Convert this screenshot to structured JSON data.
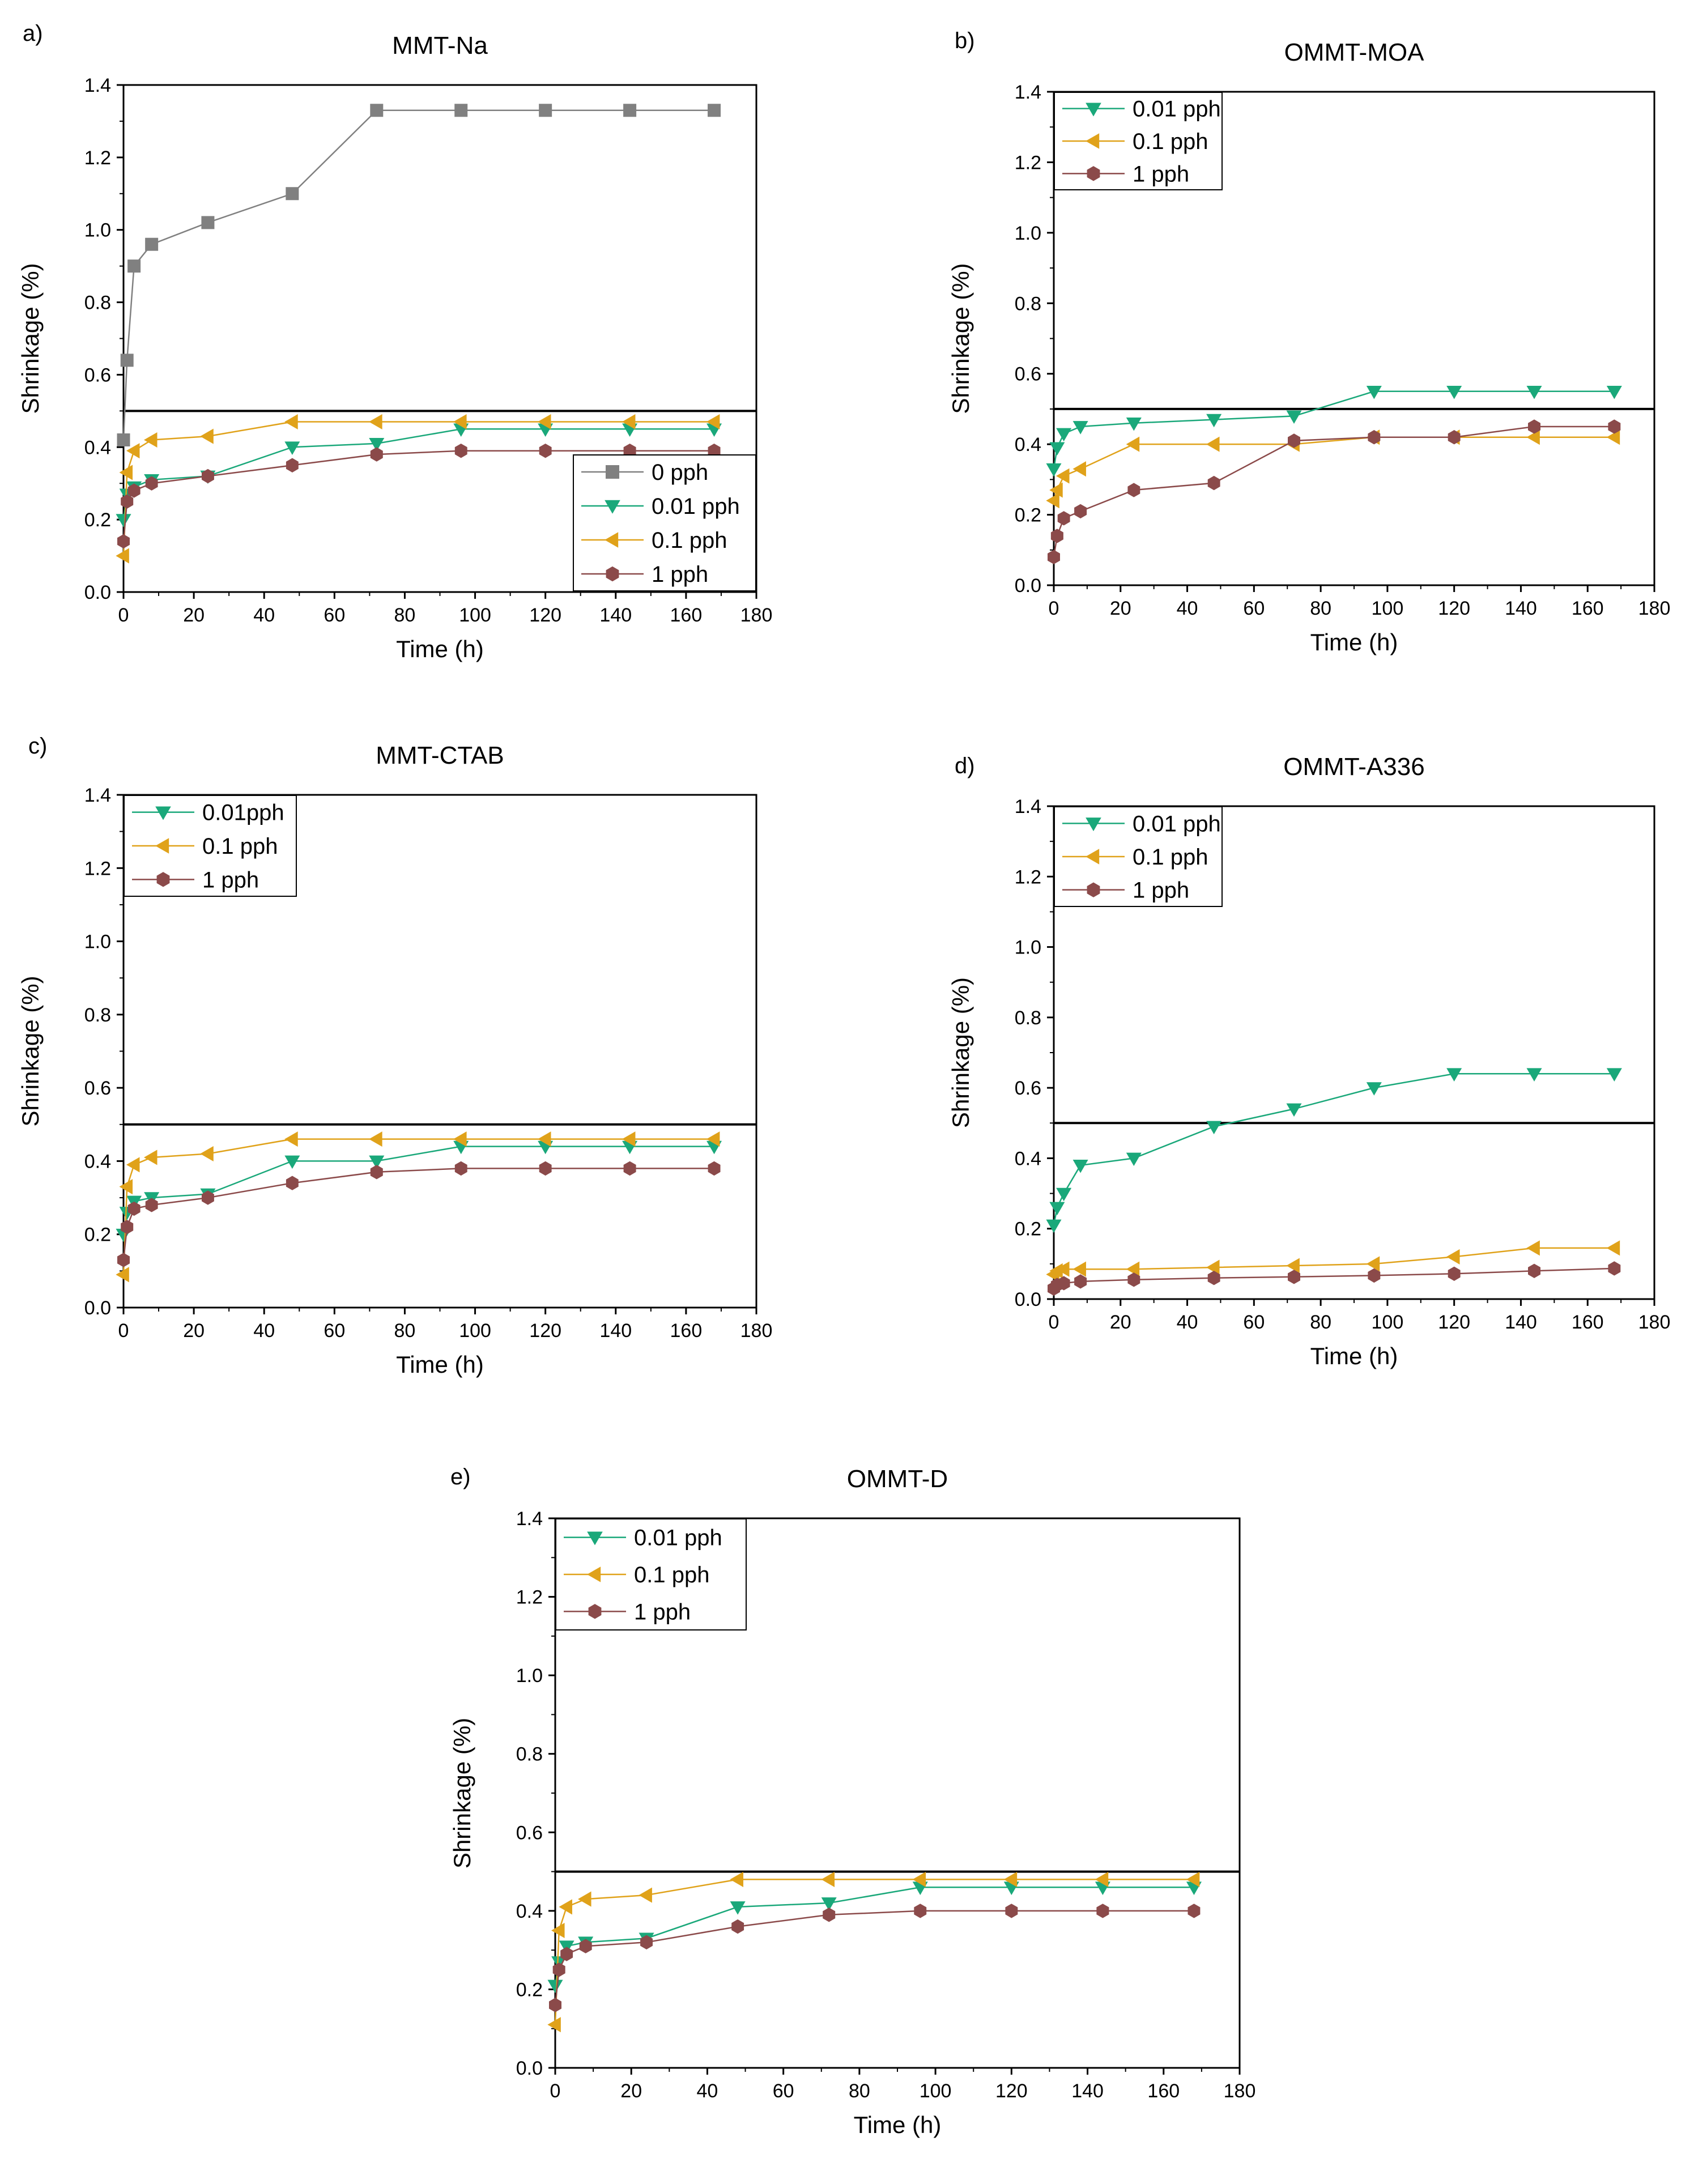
{
  "chart_data": [
    {
      "id": "a",
      "panel_label": "a)",
      "type": "line",
      "title": "MMT-Na",
      "xlabel": "Time (h)",
      "ylabel": "Shrinkage (%)",
      "xlim": [
        0,
        180
      ],
      "ylim": [
        0,
        1.4
      ],
      "xticks": [
        "0",
        "20",
        "40",
        "60",
        "80",
        "100",
        "120",
        "140",
        "160",
        "180"
      ],
      "yticks": [
        "0.0",
        "0.2",
        "0.4",
        "0.6",
        "0.8",
        "1.0",
        "1.2",
        "1.4"
      ],
      "reference_line_y": 0.5,
      "legend_position": "lower-right",
      "x": [
        0,
        1,
        3,
        8,
        24,
        48,
        72,
        96,
        120,
        144,
        168
      ],
      "series": [
        {
          "name": "0 pph",
          "marker": "square",
          "color": "#808080",
          "values": [
            0.42,
            0.64,
            0.9,
            0.96,
            1.02,
            1.1,
            1.33,
            1.33,
            1.33,
            1.33,
            1.33
          ]
        },
        {
          "name": "0.01 pph",
          "marker": "triangle-down",
          "color": "#1aa87a",
          "values": [
            0.2,
            0.27,
            0.29,
            0.31,
            0.32,
            0.4,
            0.41,
            0.45,
            0.45,
            0.45,
            0.45
          ]
        },
        {
          "name": "0.1 pph",
          "marker": "triangle-left",
          "color": "#e0a21a",
          "values": [
            0.1,
            0.33,
            0.39,
            0.42,
            0.43,
            0.47,
            0.47,
            0.47,
            0.47,
            0.47,
            0.47
          ]
        },
        {
          "name": "1 pph",
          "marker": "hexagon",
          "color": "#8b4a4a",
          "values": [
            0.14,
            0.25,
            0.28,
            0.3,
            0.32,
            0.35,
            0.38,
            0.39,
            0.39,
            0.39,
            0.39
          ]
        }
      ]
    },
    {
      "id": "b",
      "panel_label": "b)",
      "type": "line",
      "title": "OMMT-MOA",
      "xlabel": "Time (h)",
      "ylabel": "Shrinkage (%)",
      "xlim": [
        0,
        180
      ],
      "ylim": [
        0,
        1.4
      ],
      "xticks": [
        "0",
        "20",
        "40",
        "60",
        "80",
        "100",
        "120",
        "140",
        "160",
        "180"
      ],
      "yticks": [
        "0.0",
        "0.2",
        "0.4",
        "0.6",
        "0.8",
        "1.0",
        "1.2",
        "1.4"
      ],
      "reference_line_y": 0.5,
      "legend_position": "upper-left",
      "x": [
        0,
        1,
        3,
        8,
        24,
        48,
        72,
        96,
        120,
        144,
        168
      ],
      "series": [
        {
          "name": "0.01 pph",
          "marker": "triangle-down",
          "color": "#1aa87a",
          "values": [
            0.33,
            0.39,
            0.43,
            0.45,
            0.46,
            0.47,
            0.48,
            0.55,
            0.55,
            0.55,
            0.55
          ]
        },
        {
          "name": "0.1 pph",
          "marker": "triangle-left",
          "color": "#e0a21a",
          "values": [
            0.24,
            0.27,
            0.31,
            0.33,
            0.4,
            0.4,
            0.4,
            0.42,
            0.42,
            0.42,
            0.42
          ]
        },
        {
          "name": "1 pph",
          "marker": "hexagon",
          "color": "#8b4a4a",
          "values": [
            0.08,
            0.14,
            0.19,
            0.21,
            0.27,
            0.29,
            0.41,
            0.42,
            0.42,
            0.45,
            0.45
          ]
        }
      ]
    },
    {
      "id": "c",
      "panel_label": "c)",
      "type": "line",
      "title": "MMT-CTAB",
      "xlabel": "Time (h)",
      "ylabel": "Shrinkage (%)",
      "xlim": [
        0,
        180
      ],
      "ylim": [
        0,
        1.4
      ],
      "xticks": [
        "0",
        "20",
        "40",
        "60",
        "80",
        "100",
        "120",
        "140",
        "160",
        "180"
      ],
      "yticks": [
        "0.0",
        "0.2",
        "0.4",
        "0.6",
        "0.8",
        "1.0",
        "1.2",
        "1.4"
      ],
      "reference_line_y": 0.5,
      "legend_position": "upper-left",
      "x": [
        0,
        1,
        3,
        8,
        24,
        48,
        72,
        96,
        120,
        144,
        168
      ],
      "series": [
        {
          "name": "0.01pph",
          "marker": "triangle-down",
          "color": "#1aa87a",
          "values": [
            0.2,
            0.26,
            0.29,
            0.3,
            0.31,
            0.4,
            0.4,
            0.44,
            0.44,
            0.44,
            0.44
          ]
        },
        {
          "name": "0.1 pph",
          "marker": "triangle-left",
          "color": "#e0a21a",
          "values": [
            0.09,
            0.33,
            0.39,
            0.41,
            0.42,
            0.46,
            0.46,
            0.46,
            0.46,
            0.46,
            0.46
          ]
        },
        {
          "name": "1 pph",
          "marker": "hexagon",
          "color": "#8b4a4a",
          "values": [
            0.13,
            0.22,
            0.27,
            0.28,
            0.3,
            0.34,
            0.37,
            0.38,
            0.38,
            0.38,
            0.38
          ]
        }
      ]
    },
    {
      "id": "d",
      "panel_label": "d)",
      "type": "line",
      "title": "OMMT-A336",
      "xlabel": "Time (h)",
      "ylabel": "Shrinkage (%)",
      "xlim": [
        0,
        180
      ],
      "ylim": [
        0,
        1.4
      ],
      "xticks": [
        "0",
        "20",
        "40",
        "60",
        "80",
        "100",
        "120",
        "140",
        "160",
        "180"
      ],
      "yticks": [
        "0.0",
        "0.2",
        "0.4",
        "0.6",
        "0.8",
        "1.0",
        "1.2",
        "1.4"
      ],
      "reference_line_y": 0.5,
      "legend_position": "upper-left",
      "x": [
        0,
        1,
        3,
        8,
        24,
        48,
        72,
        96,
        120,
        144,
        168
      ],
      "series": [
        {
          "name": "0.01 pph",
          "marker": "triangle-down",
          "color": "#1aa87a",
          "values": [
            0.21,
            0.26,
            0.3,
            0.38,
            0.4,
            0.49,
            0.54,
            0.6,
            0.64,
            0.64,
            0.64
          ]
        },
        {
          "name": "0.1 pph",
          "marker": "triangle-left",
          "color": "#e0a21a",
          "values": [
            0.07,
            0.08,
            0.085,
            0.085,
            0.085,
            0.09,
            0.095,
            0.1,
            0.12,
            0.145,
            0.145
          ]
        },
        {
          "name": "1 pph",
          "marker": "hexagon",
          "color": "#8b4a4a",
          "values": [
            0.03,
            0.04,
            0.045,
            0.05,
            0.055,
            0.06,
            0.063,
            0.067,
            0.072,
            0.08,
            0.087
          ]
        }
      ]
    },
    {
      "id": "e",
      "panel_label": "e)",
      "type": "line",
      "title": "OMMT-D",
      "xlabel": "Time (h)",
      "ylabel": "Shrinkage (%)",
      "xlim": [
        0,
        180
      ],
      "ylim": [
        0,
        1.4
      ],
      "xticks": [
        "0",
        "20",
        "40",
        "60",
        "80",
        "100",
        "120",
        "140",
        "160",
        "180"
      ],
      "yticks": [
        "0.0",
        "0.2",
        "0.4",
        "0.6",
        "0.8",
        "1.0",
        "1.2",
        "1.4"
      ],
      "reference_line_y": 0.5,
      "legend_position": "upper-left",
      "x": [
        0,
        1,
        3,
        8,
        24,
        48,
        72,
        96,
        120,
        144,
        168
      ],
      "series": [
        {
          "name": "0.01 pph",
          "marker": "triangle-down",
          "color": "#1aa87a",
          "values": [
            0.21,
            0.27,
            0.31,
            0.32,
            0.33,
            0.41,
            0.42,
            0.46,
            0.46,
            0.46,
            0.46
          ]
        },
        {
          "name": "0.1 pph",
          "marker": "triangle-left",
          "color": "#e0a21a",
          "values": [
            0.11,
            0.35,
            0.41,
            0.43,
            0.44,
            0.48,
            0.48,
            0.48,
            0.48,
            0.48,
            0.48
          ]
        },
        {
          "name": "1 pph",
          "marker": "hexagon",
          "color": "#8b4a4a",
          "values": [
            0.16,
            0.25,
            0.29,
            0.31,
            0.32,
            0.36,
            0.39,
            0.4,
            0.4,
            0.4,
            0.4
          ]
        }
      ]
    }
  ]
}
